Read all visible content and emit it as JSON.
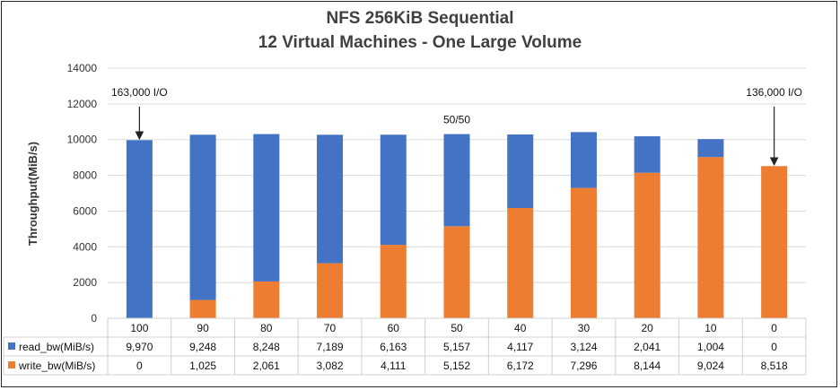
{
  "chart_data": {
    "type": "bar",
    "stacked": true,
    "title": "NFS 256KiB Sequential",
    "subtitle": "12 Virtual Machines - One Large Volume",
    "ylabel": "Throughput(MiB/s)",
    "xlabel": "",
    "ylim": [
      0,
      14000
    ],
    "yticks": [
      0,
      2000,
      4000,
      6000,
      8000,
      10000,
      12000,
      14000
    ],
    "grid": true,
    "categories": [
      "100",
      "90",
      "80",
      "70",
      "60",
      "50",
      "40",
      "30",
      "20",
      "10",
      "0"
    ],
    "series": [
      {
        "name": "read_bw(MiB/s)",
        "color": "#4472C4",
        "values": [
          9970,
          9248,
          8248,
          7189,
          6163,
          5157,
          4117,
          3124,
          2041,
          1004,
          0
        ],
        "labels": [
          "9,970",
          "9,248",
          "8,248",
          "7,189",
          "6,163",
          "5,157",
          "4,117",
          "3,124",
          "2,041",
          "1,004",
          "0"
        ]
      },
      {
        "name": "write_bw(MiB/s)",
        "color": "#ED7D31",
        "values": [
          0,
          1025,
          2061,
          3082,
          4111,
          5152,
          6172,
          7296,
          8144,
          9024,
          8518
        ],
        "labels": [
          "0",
          "1,025",
          "2,061",
          "3,082",
          "4,111",
          "5,152",
          "6,172",
          "7,296",
          "8,144",
          "9,024",
          "8,518"
        ]
      }
    ],
    "annotations": [
      {
        "text": "163,000 I/O",
        "category": "100",
        "arrow": true
      },
      {
        "text": "50/50",
        "category": "50",
        "arrow": false
      },
      {
        "text": "136,000 I/O",
        "category": "0",
        "arrow": true
      }
    ],
    "legend": "data-table-left"
  }
}
